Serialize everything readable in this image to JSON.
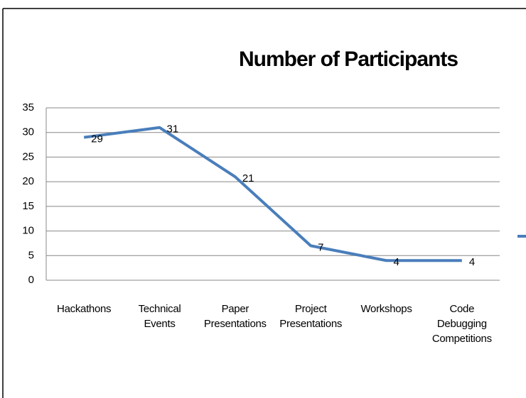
{
  "chart_data": {
    "type": "line",
    "title": "Number of Participants",
    "categories": [
      "Hackathons",
      "Technical Events",
      "Paper Presentations",
      "Project Presentations",
      "Workshops",
      "Code Debugging Competitions"
    ],
    "values": [
      29,
      31,
      21,
      7,
      4,
      4
    ],
    "color": "#4a7ebb",
    "ylim": [
      0,
      35
    ],
    "yticks": [
      0,
      5,
      10,
      15,
      20,
      25,
      30,
      35
    ],
    "grid": true
  }
}
